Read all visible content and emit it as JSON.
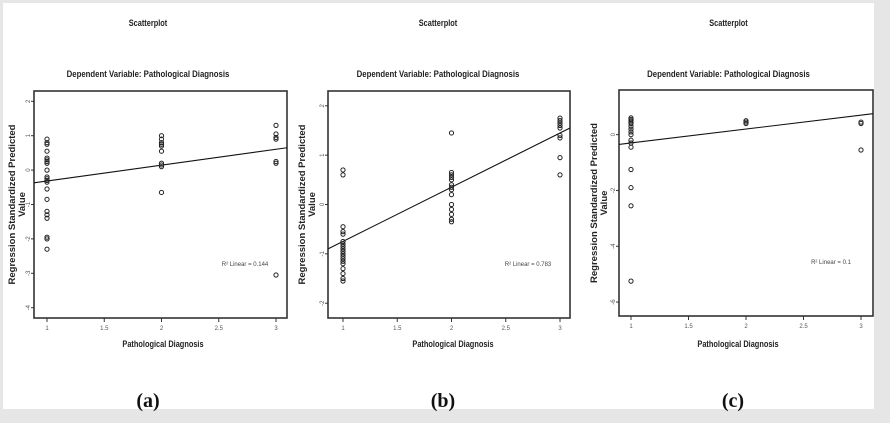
{
  "figure": {
    "panels": [
      {
        "id": "a",
        "title": "Scatterplot",
        "subtitle": "Dependent Variable: Pathological Diagnosis",
        "ylabel_line1": "Regression Standardized Predicted",
        "ylabel_line2": "Value",
        "xlabel": "Pathological Diagnosis",
        "r2_label": "R² Linear = 0.144",
        "panel_label": "(a)"
      },
      {
        "id": "b",
        "title": "Scatterplot",
        "subtitle": "Dependent Variable: Pathological Diagnosis",
        "ylabel_line1": "Regression Standardized Predicted",
        "ylabel_line2": "Value",
        "xlabel": "Pathological Diagnosis",
        "r2_label": "R² Linear = 0.783",
        "panel_label": "(b)"
      },
      {
        "id": "c",
        "title": "Scatterplot",
        "subtitle": "Dependent Variable: Pathological Diagnosis",
        "ylabel_line1": "Regression Standardized Predicted",
        "ylabel_line2": "Value",
        "xlabel": "Pathological Diagnosis",
        "r2_label": "R² Linear = 0.1",
        "panel_label": "(c)"
      }
    ]
  },
  "chart_data": [
    {
      "type": "scatter",
      "title": "Scatterplot",
      "subtitle": "Dependent Variable: Pathological Diagnosis",
      "xlabel": "Pathological Diagnosis",
      "ylabel": "Regression Standardized Predicted Value",
      "xlim": [
        0.95,
        3.05
      ],
      "ylim": [
        -4.3,
        2.3
      ],
      "xticks": [
        1,
        1.5,
        2,
        2.5,
        3
      ],
      "yticks": [
        2,
        1,
        0,
        -1,
        -2,
        -3,
        -4
      ],
      "annotation": "R² Linear = 0.144",
      "fit_line": {
        "x": [
          0.95,
          3.05
        ],
        "y": [
          -0.37,
          0.65
        ]
      },
      "points": [
        [
          1,
          0.9
        ],
        [
          1,
          0.8
        ],
        [
          1,
          0.75
        ],
        [
          1,
          0.55
        ],
        [
          1,
          0.35
        ],
        [
          1,
          0.3
        ],
        [
          1,
          0.25
        ],
        [
          1,
          0.2
        ],
        [
          1,
          0.0
        ],
        [
          1,
          -0.2
        ],
        [
          1,
          -0.25
        ],
        [
          1,
          -0.3
        ],
        [
          1,
          -0.35
        ],
        [
          1,
          -0.55
        ],
        [
          1,
          -0.85
        ],
        [
          1,
          -1.2
        ],
        [
          1,
          -1.3
        ],
        [
          1,
          -1.4
        ],
        [
          1,
          -1.95
        ],
        [
          1,
          -2.0
        ],
        [
          1,
          -2.3
        ],
        [
          2,
          1.0
        ],
        [
          2,
          0.9
        ],
        [
          2,
          0.8
        ],
        [
          2,
          0.75
        ],
        [
          2,
          0.7
        ],
        [
          2,
          0.55
        ],
        [
          2,
          0.2
        ],
        [
          2,
          0.15
        ],
        [
          2,
          0.1
        ],
        [
          2,
          -0.65
        ],
        [
          3,
          1.3
        ],
        [
          3,
          1.05
        ],
        [
          3,
          0.95
        ],
        [
          3,
          0.9
        ],
        [
          3,
          0.25
        ],
        [
          3,
          0.2
        ],
        [
          3,
          -3.05
        ]
      ]
    },
    {
      "type": "scatter",
      "title": "Scatterplot",
      "subtitle": "Dependent Variable: Pathological Diagnosis",
      "xlabel": "Pathological Diagnosis",
      "ylabel": "Regression Standardized Predicted Value",
      "xlim": [
        0.95,
        3.05
      ],
      "ylim": [
        -2.3,
        2.3
      ],
      "xticks": [
        1,
        1.5,
        2,
        2.5,
        3
      ],
      "yticks": [
        2,
        1,
        0,
        -1,
        -2
      ],
      "annotation": "R² Linear = 0.783",
      "fit_line": {
        "x": [
          0.95,
          3.05
        ],
        "y": [
          -0.9,
          1.55
        ]
      },
      "points": [
        [
          1,
          0.7
        ],
        [
          1,
          0.6
        ],
        [
          1,
          -0.45
        ],
        [
          1,
          -0.55
        ],
        [
          1,
          -0.6
        ],
        [
          1,
          -0.75
        ],
        [
          1,
          -0.8
        ],
        [
          1,
          -0.85
        ],
        [
          1,
          -0.9
        ],
        [
          1,
          -0.95
        ],
        [
          1,
          -1.0
        ],
        [
          1,
          -1.05
        ],
        [
          1,
          -1.1
        ],
        [
          1,
          -1.15
        ],
        [
          1,
          -1.2
        ],
        [
          1,
          -1.3
        ],
        [
          1,
          -1.4
        ],
        [
          1,
          -1.5
        ],
        [
          1,
          -1.55
        ],
        [
          2,
          1.45
        ],
        [
          2,
          0.65
        ],
        [
          2,
          0.6
        ],
        [
          2,
          0.55
        ],
        [
          2,
          0.5
        ],
        [
          2,
          0.4
        ],
        [
          2,
          0.35
        ],
        [
          2,
          0.3
        ],
        [
          2,
          0.2
        ],
        [
          2,
          0.0
        ],
        [
          2,
          -0.1
        ],
        [
          2,
          -0.2
        ],
        [
          2,
          -0.3
        ],
        [
          2,
          -0.35
        ],
        [
          3,
          1.75
        ],
        [
          3,
          1.7
        ],
        [
          3,
          1.65
        ],
        [
          3,
          1.6
        ],
        [
          3,
          1.55
        ],
        [
          3,
          1.4
        ],
        [
          3,
          1.35
        ],
        [
          3,
          0.95
        ],
        [
          3,
          0.6
        ]
      ]
    },
    {
      "type": "scatter",
      "title": "Scatterplot",
      "subtitle": "Dependent Variable: Pathological Diagnosis",
      "xlabel": "Pathological Diagnosis",
      "ylabel": "Regression Standardized Predicted Value",
      "xlim": [
        0.95,
        3.05
      ],
      "ylim": [
        -6.5,
        1.6
      ],
      "xticks": [
        1,
        1.5,
        2,
        2.5,
        3
      ],
      "yticks": [
        0,
        -2,
        -4,
        -6
      ],
      "annotation": "R² Linear = 0.1",
      "fit_line": {
        "x": [
          0.95,
          3.05
        ],
        "y": [
          -0.35,
          0.75
        ]
      },
      "points": [
        [
          1,
          0.6
        ],
        [
          1,
          0.55
        ],
        [
          1,
          0.5
        ],
        [
          1,
          0.45
        ],
        [
          1,
          0.4
        ],
        [
          1,
          0.3
        ],
        [
          1,
          0.2
        ],
        [
          1,
          0.1
        ],
        [
          1,
          0.0
        ],
        [
          1,
          -0.2
        ],
        [
          1,
          -0.3
        ],
        [
          1,
          -0.45
        ],
        [
          1,
          -1.25
        ],
        [
          1,
          -1.9
        ],
        [
          1,
          -2.55
        ],
        [
          1,
          -5.25
        ],
        [
          2,
          0.5
        ],
        [
          2,
          0.45
        ],
        [
          2,
          0.4
        ],
        [
          3,
          0.45
        ],
        [
          3,
          0.4
        ],
        [
          3,
          -0.55
        ]
      ]
    }
  ]
}
